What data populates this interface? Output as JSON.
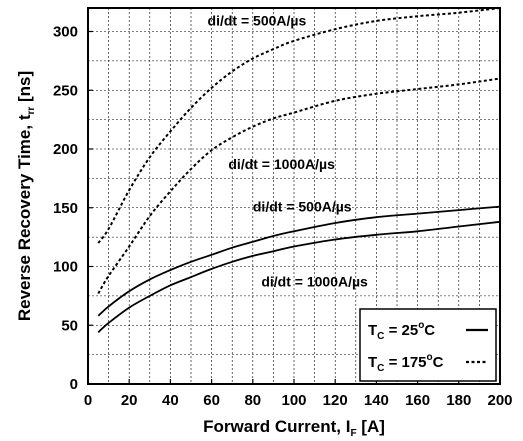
{
  "chart_data": {
    "type": "line",
    "xlabel": {
      "main": "Forward Current, I",
      "sub": "F",
      "tail": " [A]"
    },
    "ylabel": {
      "main": "Reverse Recovery Time, t",
      "sub": "rr",
      "tail": " [ns]"
    },
    "xlim": [
      0,
      200
    ],
    "ylim": [
      0,
      320
    ],
    "x_ticks": [
      0,
      20,
      40,
      60,
      80,
      100,
      120,
      140,
      160,
      180,
      200
    ],
    "y_ticks": [
      0,
      50,
      100,
      150,
      200,
      250,
      300
    ],
    "grid": true,
    "series": [
      {
        "label_text": "di/dt = 500A/µs",
        "condition": "Tc = 175°C",
        "style": "dashed",
        "x": [
          5,
          10,
          20,
          30,
          40,
          50,
          60,
          70,
          80,
          90,
          100,
          120,
          140,
          160,
          180,
          200
        ],
        "y": [
          120,
          132,
          165,
          193,
          215,
          235,
          252,
          266,
          277,
          285,
          292,
          302,
          309,
          313,
          316,
          320
        ]
      },
      {
        "label_text": "di/dt = 1000A/µs",
        "condition": "Tc = 175°C",
        "style": "dashed",
        "x": [
          5,
          10,
          20,
          30,
          40,
          50,
          60,
          70,
          80,
          90,
          100,
          120,
          140,
          160,
          180,
          200
        ],
        "y": [
          77,
          92,
          117,
          143,
          164,
          183,
          199,
          210,
          219,
          226,
          231,
          241,
          247,
          251,
          255,
          260
        ]
      },
      {
        "label_text": "di/dt = 500A/µs",
        "condition": "Tc = 25°C",
        "style": "solid",
        "x": [
          5,
          10,
          20,
          30,
          40,
          50,
          60,
          70,
          80,
          90,
          100,
          120,
          140,
          160,
          180,
          200
        ],
        "y": [
          58,
          66,
          79,
          89,
          97,
          104,
          110,
          116,
          121,
          126,
          130,
          137,
          142,
          145,
          148,
          151
        ]
      },
      {
        "label_text": "di/dt = 1000A/µs",
        "condition": "Tc = 25°C",
        "style": "solid",
        "x": [
          5,
          10,
          20,
          30,
          40,
          50,
          60,
          70,
          80,
          90,
          100,
          120,
          140,
          160,
          180,
          200
        ],
        "y": [
          44,
          52,
          65,
          75,
          84,
          91,
          98,
          104,
          109,
          113,
          117,
          123,
          127,
          130,
          134,
          138
        ]
      }
    ],
    "annotations": [
      {
        "text": "di/dt = 500A/µs",
        "x": 82,
        "y": 305
      },
      {
        "text": "di/dt = 1000A/µs",
        "x": 94,
        "y": 183
      },
      {
        "text": "di/dt = 500A/µs",
        "x": 104,
        "y": 147
      },
      {
        "text": "di/dt = 1000A/µs",
        "x": 110,
        "y": 83
      }
    ],
    "legend": {
      "placement": "bottom-right",
      "entries": [
        {
          "prefix": "T",
          "sub": "C",
          "mid": " = 25",
          "sup": "o",
          "suffix": "C",
          "style": "solid"
        },
        {
          "prefix": "T",
          "sub": "C",
          "mid": " = 175",
          "sup": "o",
          "suffix": "C",
          "style": "dashed"
        }
      ]
    }
  }
}
